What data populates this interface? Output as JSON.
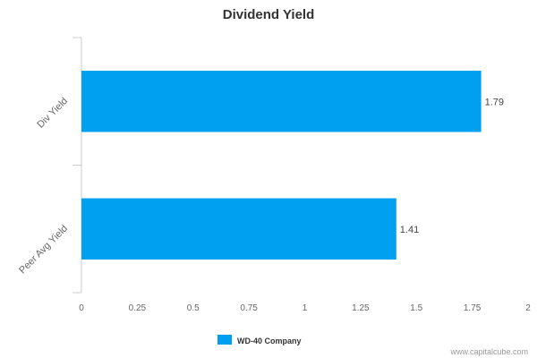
{
  "chart_data": {
    "type": "bar",
    "orientation": "horizontal",
    "title": "Dividend Yield",
    "categories": [
      "Div Yield",
      "Peer Avg Yield"
    ],
    "series": [
      {
        "name": "WD-40 Company",
        "values": [
          1.79,
          1.41
        ],
        "color": "#00a0f0"
      }
    ],
    "data_labels": [
      "1.79",
      "1.41"
    ],
    "xlim": [
      0,
      2
    ],
    "x_ticks": [
      0,
      0.25,
      0.5,
      0.75,
      1,
      1.25,
      1.5,
      1.75,
      2
    ],
    "x_tick_labels": [
      "0",
      "0.25",
      "0.5",
      "0.75",
      "1",
      "1.25",
      "1.5",
      "1.75",
      "2"
    ],
    "grid": false,
    "legend_position": "bottom"
  },
  "watermark": "www.capitalcube.com"
}
